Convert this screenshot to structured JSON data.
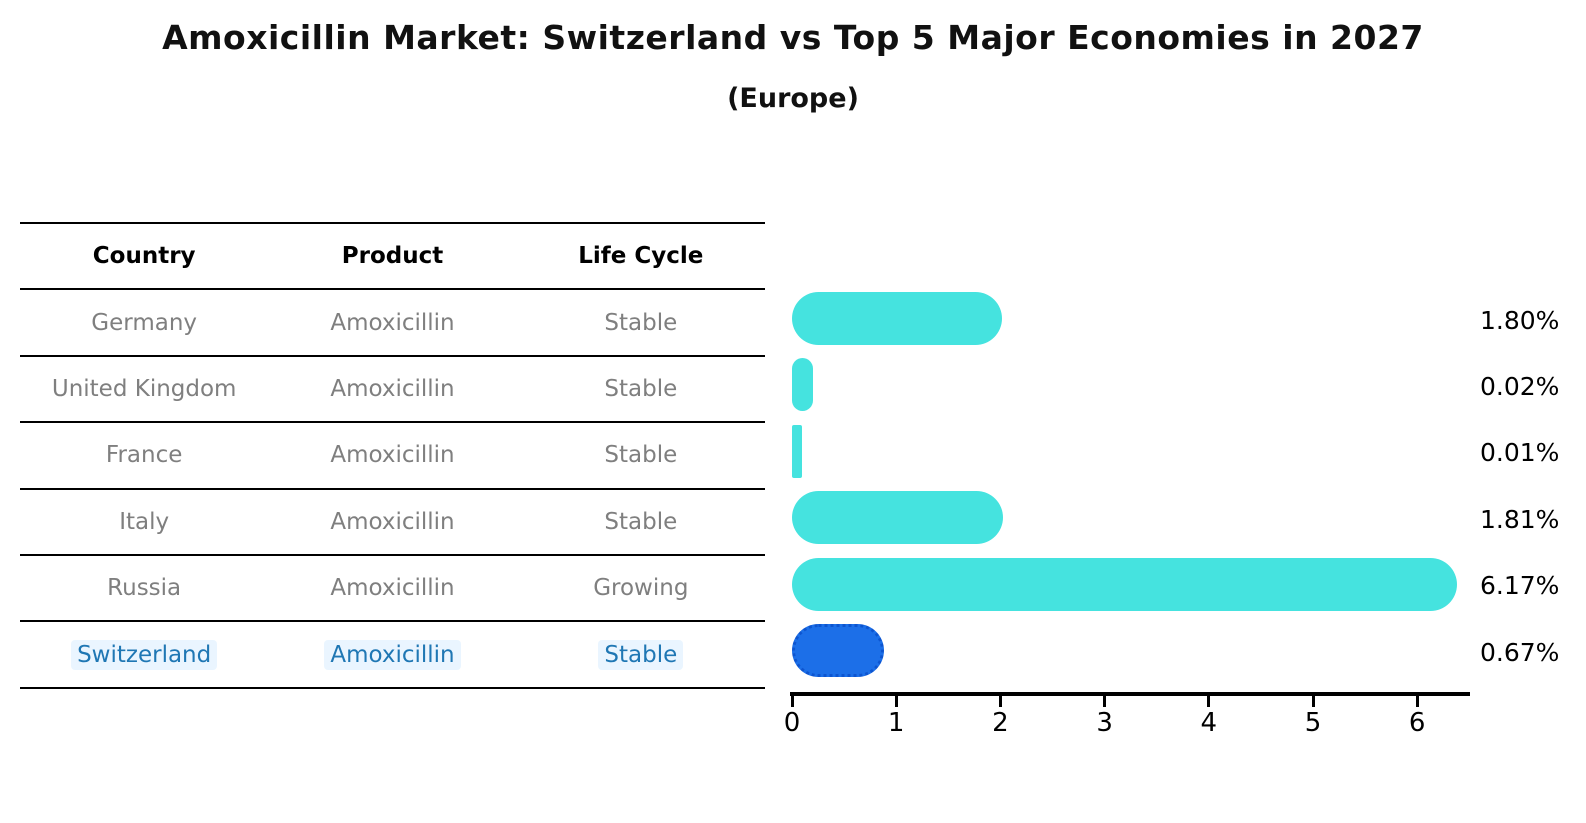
{
  "title": "Amoxicillin Market: Switzerland vs Top 5 Major Economies in 2027",
  "subtitle": "(Europe)",
  "table": {
    "headers": [
      "Country",
      "Product",
      "Life Cycle"
    ],
    "rows": [
      {
        "country": "Germany",
        "product": "Amoxicillin",
        "life_cycle": "Stable",
        "highlight": false
      },
      {
        "country": "United Kingdom",
        "product": "Amoxicillin",
        "life_cycle": "Stable",
        "highlight": false
      },
      {
        "country": "France",
        "product": "Amoxicillin",
        "life_cycle": "Stable",
        "highlight": false
      },
      {
        "country": "Italy",
        "product": "Amoxicillin",
        "life_cycle": "Stable",
        "highlight": false
      },
      {
        "country": "Russia",
        "product": "Amoxicillin",
        "life_cycle": "Growing",
        "highlight": false
      },
      {
        "country": "Switzerland",
        "product": "Amoxicillin",
        "life_cycle": "Stable",
        "highlight": true
      }
    ]
  },
  "chart_data": {
    "type": "bar",
    "orientation": "horizontal",
    "title": "Amoxicillin Market: Switzerland vs Top 5 Major Economies in 2027",
    "subtitle": "(Europe)",
    "categories": [
      "Germany",
      "United Kingdom",
      "France",
      "Italy",
      "Russia",
      "Switzerland"
    ],
    "values": [
      1.8,
      0.02,
      0.01,
      1.81,
      6.17,
      0.67
    ],
    "value_labels": [
      "1.80%",
      "0.02%",
      "0.01%",
      "1.81%",
      "6.17%",
      "0.67%"
    ],
    "xlabel": "",
    "ylabel": "",
    "xlim": [
      0,
      6.5
    ],
    "xticks": [
      0,
      1,
      2,
      3,
      4,
      5,
      6
    ],
    "grid": false,
    "legend": false,
    "bar_color": "#45E3DF",
    "highlight_bar_color": "#1C6FE8",
    "highlight_index": 5
  },
  "colors": {
    "bar_cyan": "#45E3DF",
    "bar_blue": "#1C6FE8",
    "bar_blue_border": "#0D55D0",
    "highlight_text": "#1f77b4",
    "row_text": "#7f7f7f",
    "header_text": "#000000"
  }
}
